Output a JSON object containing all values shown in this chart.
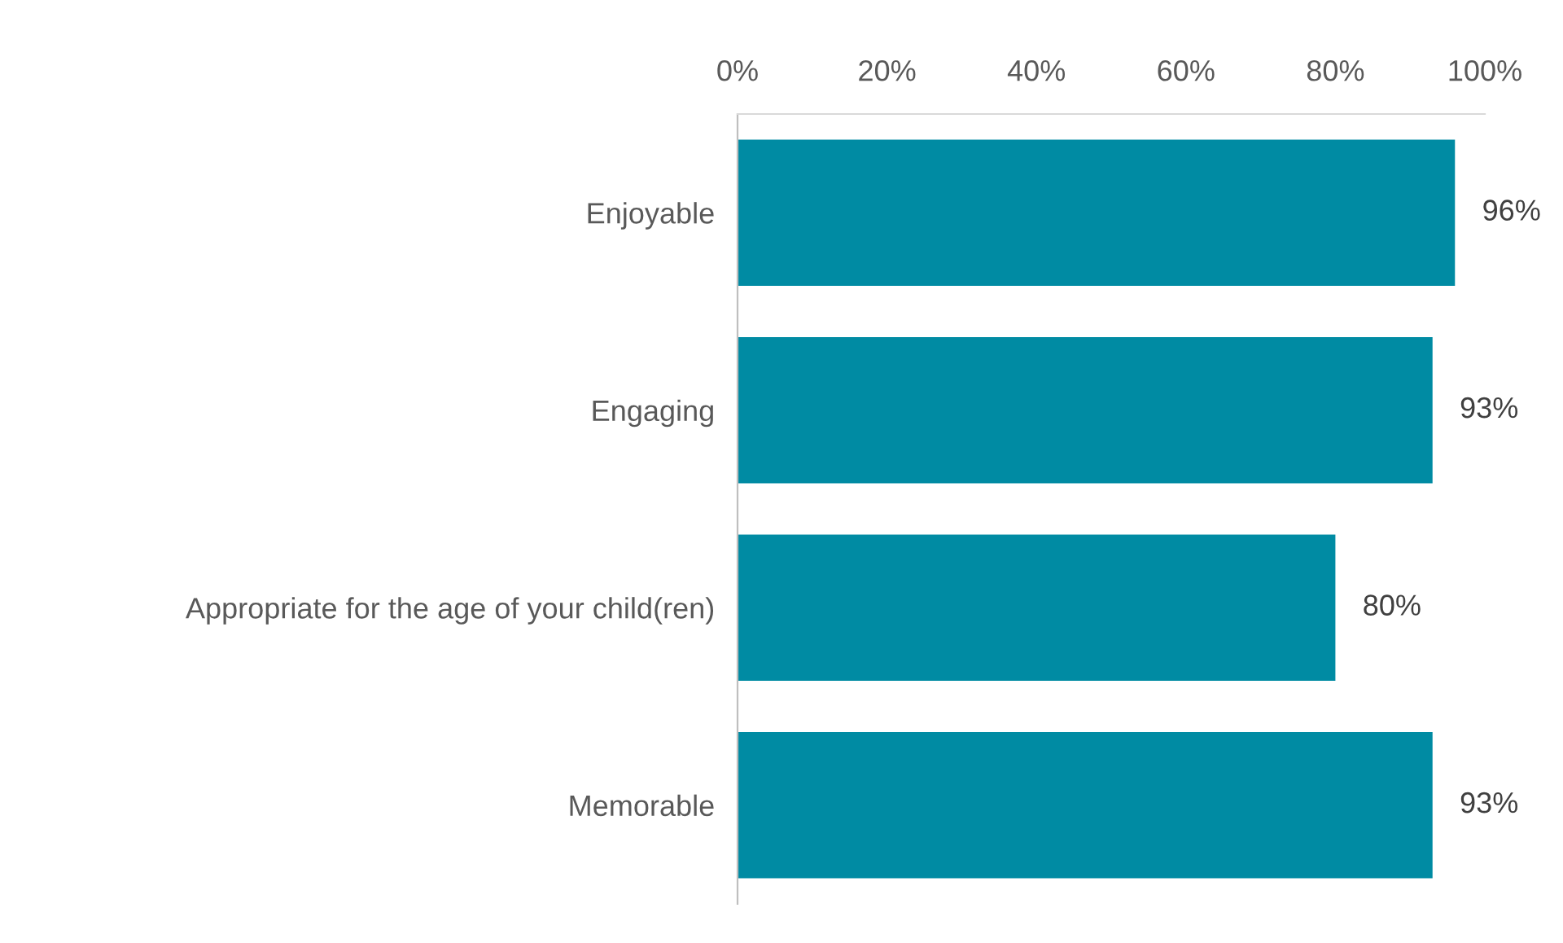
{
  "chart_data": {
    "type": "bar",
    "orientation": "horizontal",
    "categories": [
      "Enjoyable",
      "Engaging",
      "Appropriate for the age of your child(ren)",
      "Memorable"
    ],
    "values": [
      96,
      93,
      80,
      93
    ],
    "value_labels": [
      "96%",
      "93%",
      "80%",
      "93%"
    ],
    "color": "#008ba3",
    "xlim": [
      0,
      100
    ],
    "xticks": [
      {
        "value": 0,
        "label": "0%"
      },
      {
        "value": 20,
        "label": "20%"
      },
      {
        "value": 40,
        "label": "40%"
      },
      {
        "value": 60,
        "label": "60%"
      },
      {
        "value": 80,
        "label": "80%"
      },
      {
        "value": 100,
        "label": "100%"
      }
    ],
    "grid": false,
    "legend": false
  }
}
